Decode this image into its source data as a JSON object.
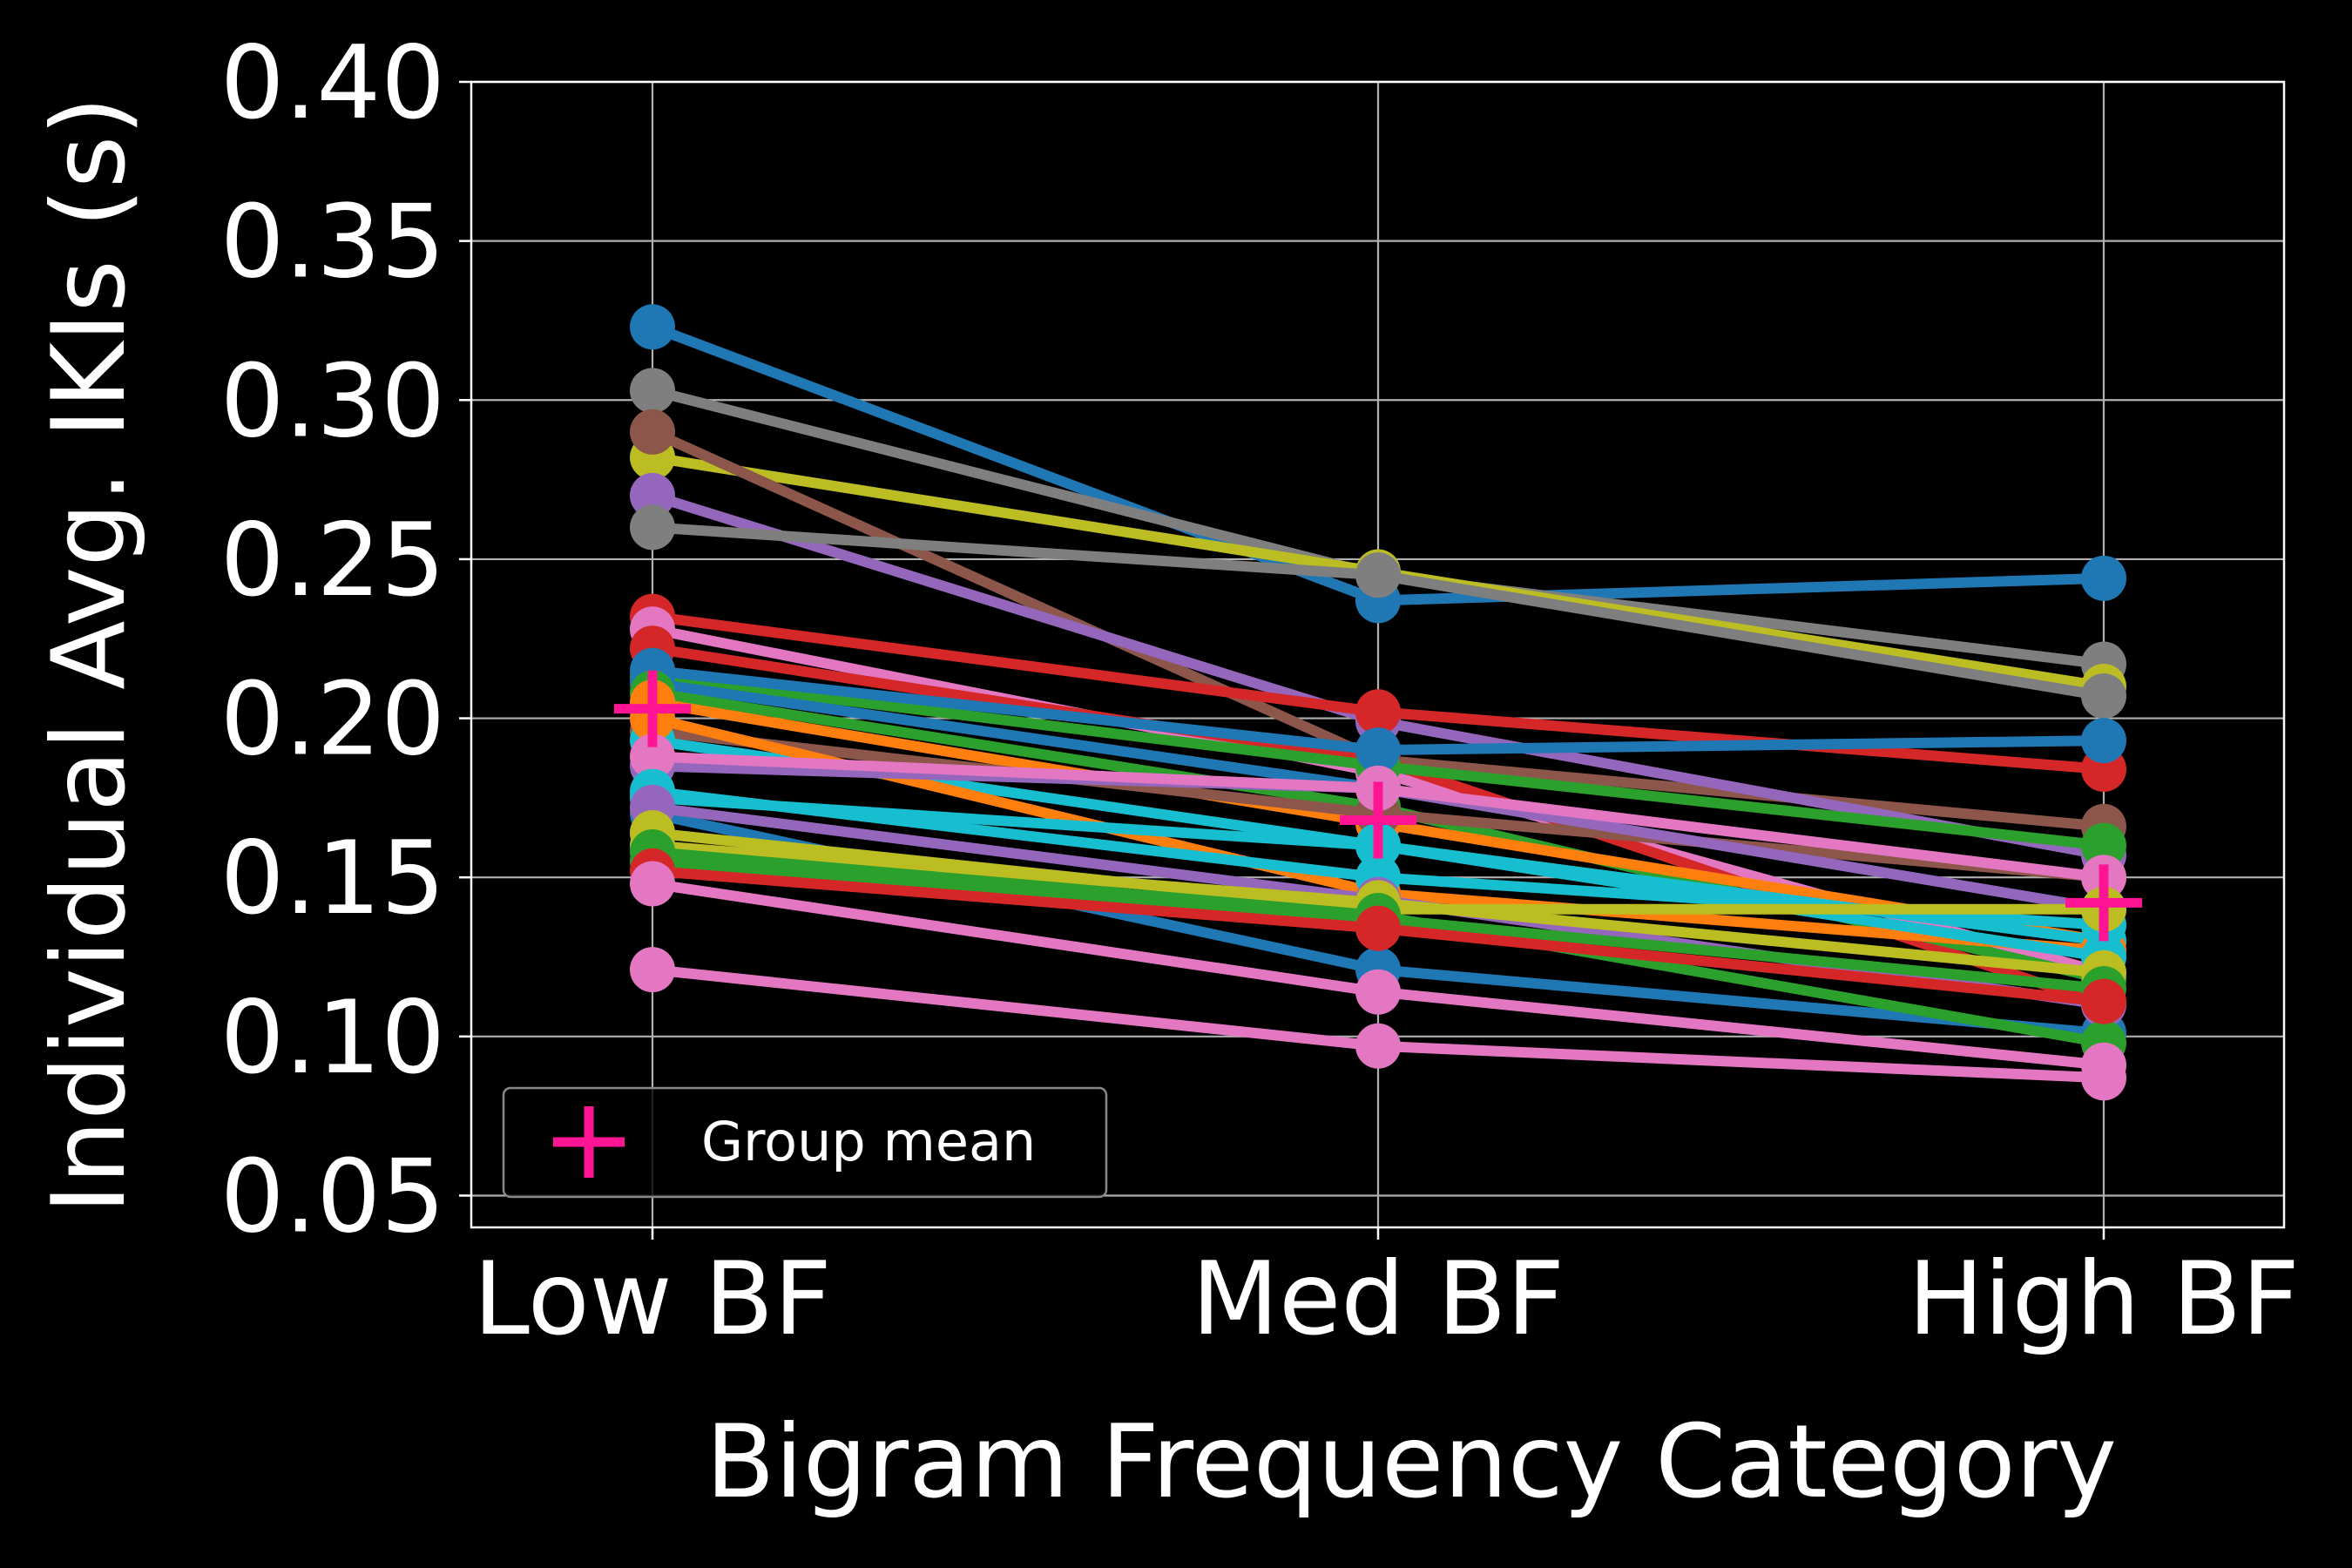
{
  "chart_data": {
    "type": "line",
    "title": "",
    "xlabel": "Bigram Frequency Category",
    "ylabel": "Individual Avg. IKIs (s)",
    "categories": [
      "Low BF",
      "Med BF",
      "High BF"
    ],
    "ylim": [
      0.04,
      0.4
    ],
    "yticks": [
      "0.05",
      "0.10",
      "0.15",
      "0.20",
      "0.25",
      "0.30",
      "0.35",
      "0.40"
    ],
    "grid": true,
    "legend": {
      "placement": "lower-left",
      "entries": [
        "Group mean"
      ]
    },
    "series": [
      {
        "color": "#1f77b4",
        "values": [
          0.323,
          0.237,
          0.244
        ]
      },
      {
        "color": "#7f7f7f",
        "values": [
          0.303,
          0.245,
          0.217
        ]
      },
      {
        "color": "#bcbd22",
        "values": [
          0.282,
          0.246,
          0.21
        ]
      },
      {
        "color": "#8c564b",
        "values": [
          0.29,
          0.187,
          0.166
        ]
      },
      {
        "color": "#9467bd",
        "values": [
          0.27,
          0.199,
          0.157
        ]
      },
      {
        "color": "#7f7f7f",
        "values": [
          0.26,
          0.245,
          0.207
        ]
      },
      {
        "color": "#d62728",
        "values": [
          0.232,
          0.202,
          0.184
        ]
      },
      {
        "color": "#e377c2",
        "values": [
          0.228,
          0.183,
          0.12
        ]
      },
      {
        "color": "#d62728",
        "values": [
          0.222,
          0.187,
          0.11
        ]
      },
      {
        "color": "#2ca02c",
        "values": [
          0.213,
          0.185,
          0.16
        ]
      },
      {
        "color": "#1f77b4",
        "values": [
          0.215,
          0.19,
          0.193
        ]
      },
      {
        "color": "#1f77b4",
        "values": [
          0.211,
          0.178,
          0.14
        ]
      },
      {
        "color": "#2ca02c",
        "values": [
          0.208,
          0.172,
          0.118
        ]
      },
      {
        "color": "#ff7f0e",
        "values": [
          0.205,
          0.167,
          0.13
        ]
      },
      {
        "color": "#8c564b",
        "values": [
          0.196,
          0.17,
          0.15
        ]
      },
      {
        "color": "#17becf",
        "values": [
          0.193,
          0.16,
          0.13
        ]
      },
      {
        "color": "#ff7f0e",
        "values": [
          0.2,
          0.145,
          0.127
        ]
      },
      {
        "color": "#9467bd",
        "values": [
          0.185,
          0.178,
          0.14
        ]
      },
      {
        "color": "#e377c2",
        "values": [
          0.188,
          0.178,
          0.15
        ]
      },
      {
        "color": "#17becf",
        "values": [
          0.175,
          0.16,
          0.125
        ]
      },
      {
        "color": "#17becf",
        "values": [
          0.177,
          0.15,
          0.135
        ]
      },
      {
        "color": "#1f77b4",
        "values": [
          0.17,
          0.121,
          0.101
        ]
      },
      {
        "color": "#9467bd",
        "values": [
          0.172,
          0.143,
          0.11
        ]
      },
      {
        "color": "#bcbd22",
        "values": [
          0.164,
          0.14,
          0.14
        ]
      },
      {
        "color": "#bcbd22",
        "values": [
          0.16,
          0.142,
          0.12
        ]
      },
      {
        "color": "#2ca02c",
        "values": [
          0.158,
          0.138,
          0.098
        ]
      },
      {
        "color": "#2ca02c",
        "values": [
          0.155,
          0.137,
          0.115
        ]
      },
      {
        "color": "#d62728",
        "values": [
          0.152,
          0.134,
          0.111
        ]
      },
      {
        "color": "#e377c2",
        "values": [
          0.148,
          0.114,
          0.091
        ]
      },
      {
        "color": "#e377c2",
        "values": [
          0.121,
          0.097,
          0.087
        ]
      }
    ],
    "group_mean": {
      "name": "Group mean",
      "color": "#ff1493",
      "values": [
        0.203,
        0.168,
        0.142
      ]
    }
  }
}
